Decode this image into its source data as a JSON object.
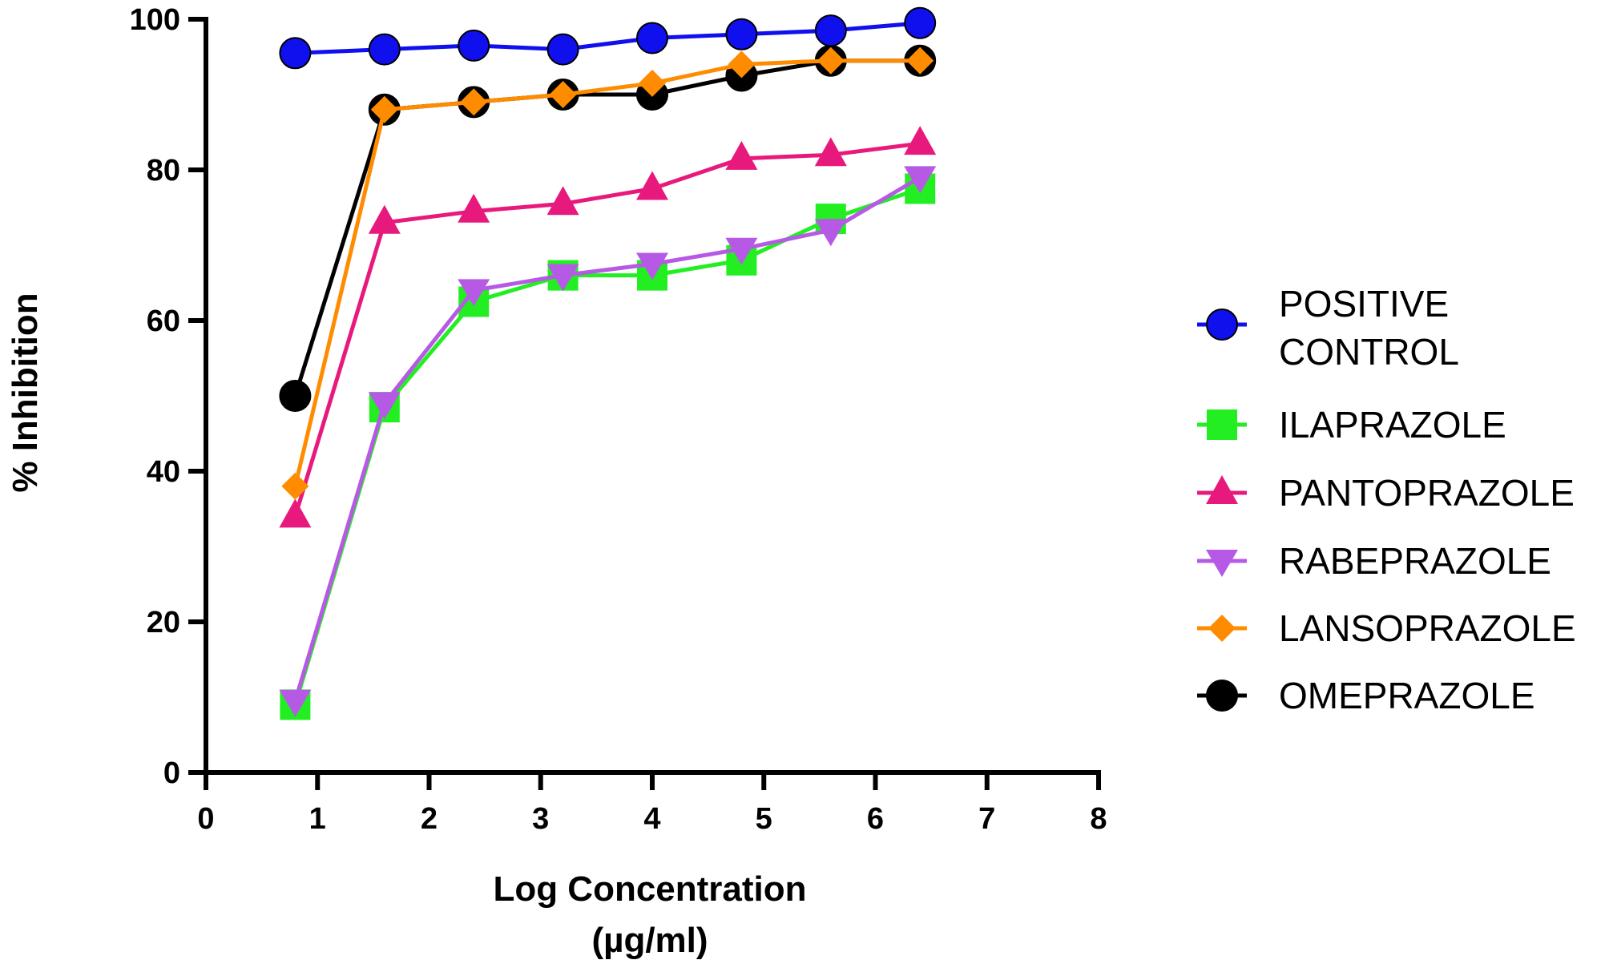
{
  "chart_data": {
    "type": "line",
    "title": "",
    "xlabel_line1": "Log Concentration",
    "xlabel_line2": "(µg/ml)",
    "ylabel": "% Inhibition",
    "xlim": [
      0,
      8
    ],
    "ylim": [
      0,
      100
    ],
    "x_ticks": [
      0,
      1,
      2,
      3,
      4,
      5,
      6,
      7,
      8
    ],
    "y_ticks": [
      0,
      20,
      40,
      60,
      80,
      100
    ],
    "grid": false,
    "legend_position": "right",
    "x": [
      0.8,
      1.6,
      2.4,
      3.2,
      4.0,
      4.8,
      5.6,
      6.4
    ],
    "series": [
      {
        "name": "ILAPRAZOLE",
        "legend_lines": [
          "ILAPRAZOLE"
        ],
        "color": "#22ee22",
        "marker": "square",
        "values": [
          9,
          48.5,
          62.5,
          66,
          66,
          68,
          73.5,
          77.5
        ]
      },
      {
        "name": "PANTOPRAZOLE",
        "legend_lines": [
          "PANTOPRAZOLE"
        ],
        "color": "#e8197d",
        "marker": "triangle-up",
        "values": [
          34,
          73,
          74.5,
          75.5,
          77.5,
          81.5,
          82,
          83.5
        ]
      },
      {
        "name": "RABEPRAZOLE",
        "legend_lines": [
          "RABEPRAZOLE"
        ],
        "color": "#b65ae6",
        "marker": "triangle-down",
        "values": [
          9.5,
          49,
          64,
          66,
          67.5,
          69.5,
          72,
          79
        ]
      },
      {
        "name": "OMEPRAZOLE",
        "legend_lines": [
          "OMEPRAZOLE"
        ],
        "color": "#000000",
        "marker": "circle",
        "values": [
          50,
          88,
          89,
          90,
          90,
          92.5,
          94.5,
          94.5
        ]
      },
      {
        "name": "LANSOPRAZOLE",
        "legend_lines": [
          "LANSOPRAZOLE"
        ],
        "color": "#ff8c00",
        "marker": "diamond",
        "values": [
          38,
          88,
          89,
          90,
          91.5,
          94,
          94.5,
          94.5
        ]
      },
      {
        "name": "POSITIVE CONTROL",
        "legend_lines": [
          "POSITIVE",
          "CONTROL"
        ],
        "color": "#1010ee",
        "marker": "circle",
        "values": [
          95.5,
          96,
          96.5,
          96,
          97.5,
          98,
          98.5,
          99.5
        ]
      }
    ],
    "legend_order": [
      "POSITIVE CONTROL",
      "ILAPRAZOLE",
      "PANTOPRAZOLE",
      "RABEPRAZOLE",
      "LANSOPRAZOLE",
      "OMEPRAZOLE"
    ]
  }
}
